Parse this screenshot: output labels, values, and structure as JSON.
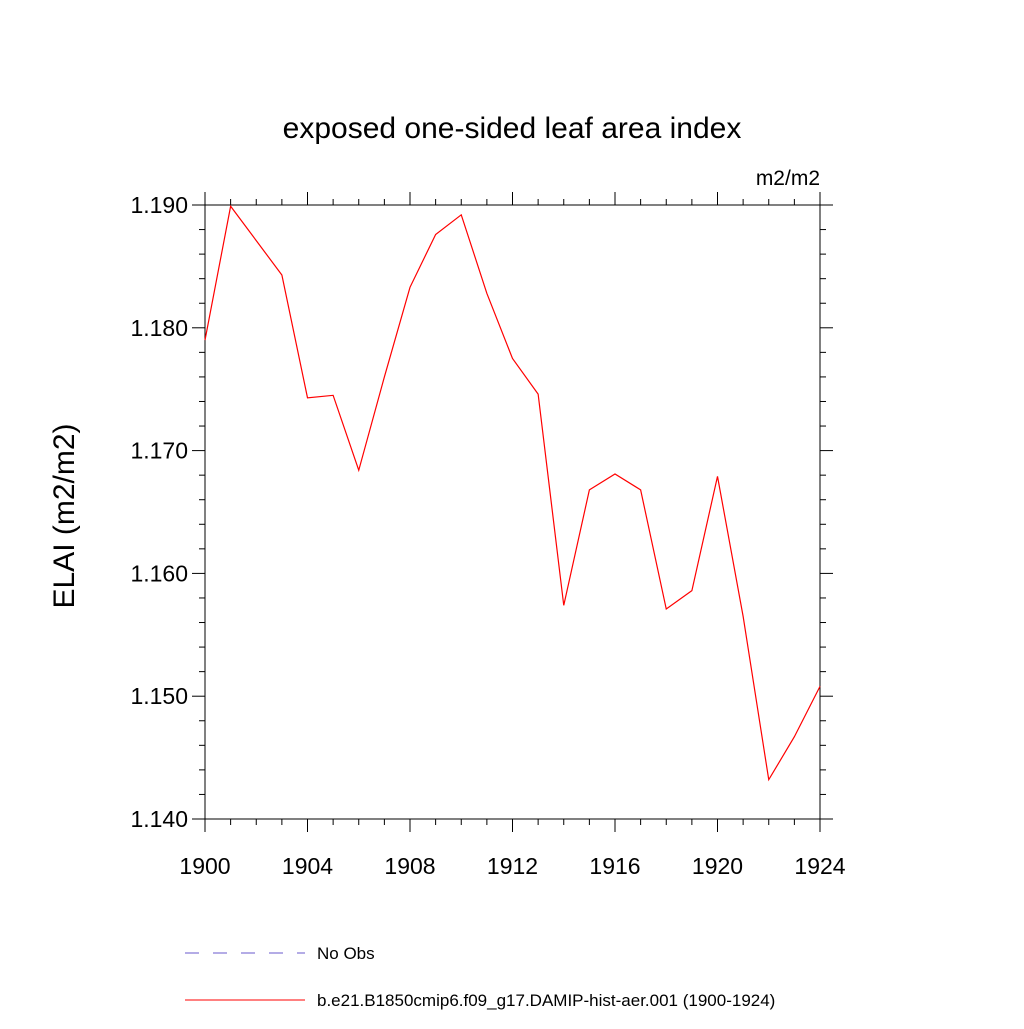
{
  "chart_data": {
    "type": "line",
    "title": "exposed one-sided leaf area index",
    "units": "m2/m2",
    "xlabel": "",
    "ylabel": "ELAI  (m2/m2)",
    "xlim": [
      1900,
      1924
    ],
    "ylim": [
      1.14,
      1.19
    ],
    "xticks": [
      1900,
      1904,
      1908,
      1912,
      1916,
      1920,
      1924
    ],
    "xtick_labels": [
      "1900",
      "1904",
      "1908",
      "1912",
      "1916",
      "1920",
      "1924"
    ],
    "yticks": [
      1.14,
      1.15,
      1.16,
      1.17,
      1.18,
      1.19
    ],
    "ytick_labels": [
      "1.140",
      "1.150",
      "1.160",
      "1.170",
      "1.180",
      "1.190"
    ],
    "grid": false,
    "legend_position": "bottom",
    "series": [
      {
        "name": "No Obs",
        "color": "#6a5acd",
        "style": "dashed",
        "x": [],
        "y": []
      },
      {
        "name": "b.e21.B1850cmip6.f09_g17.DAMIP-hist-aer.001 (1900-1924)",
        "color": "#ff0000",
        "style": "solid",
        "x": [
          1900,
          1901,
          1902,
          1903,
          1904,
          1905,
          1906,
          1907,
          1908,
          1909,
          1910,
          1911,
          1912,
          1913,
          1914,
          1915,
          1916,
          1917,
          1918,
          1919,
          1920,
          1921,
          1922,
          1923,
          1924
        ],
        "y": [
          1.179,
          1.1899,
          1.1871,
          1.1843,
          1.1743,
          1.1745,
          1.1684,
          1.176,
          1.1833,
          1.1876,
          1.1892,
          1.1828,
          1.1775,
          1.1746,
          1.1574,
          1.1668,
          1.1681,
          1.1668,
          1.1571,
          1.1586,
          1.1679,
          1.1565,
          1.1432,
          1.1467,
          1.1508
        ]
      }
    ]
  }
}
